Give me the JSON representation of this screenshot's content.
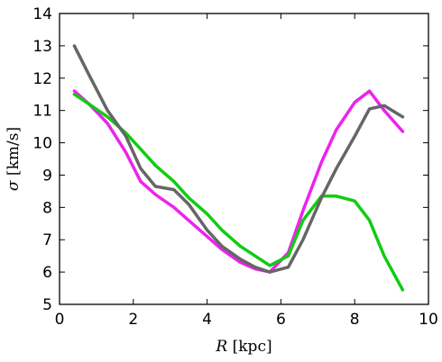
{
  "chart_data": {
    "type": "line",
    "title": "",
    "xlabel": "R [kpc]",
    "xlabel_var": "R",
    "xlabel_unit": " [kpc]",
    "ylabel": "σ [km/s]",
    "ylabel_var": "σ",
    "ylabel_unit": " [km/s]",
    "xlim": [
      0,
      10
    ],
    "ylim": [
      5,
      14
    ],
    "xticks": [
      0,
      2,
      4,
      6,
      8,
      10
    ],
    "yticks": [
      5,
      6,
      7,
      8,
      9,
      10,
      11,
      12,
      13,
      14
    ],
    "grid": false,
    "legend": "none",
    "series": [
      {
        "color": "#ee22ee",
        "x": [
          0.4,
          0.8,
          1.3,
          1.8,
          2.2,
          2.6,
          3.1,
          3.5,
          4.0,
          4.4,
          4.9,
          5.3,
          5.7,
          6.2,
          6.6,
          7.1,
          7.5,
          8.0,
          8.4,
          8.8,
          9.3
        ],
        "y": [
          11.6,
          11.2,
          10.6,
          9.7,
          8.8,
          8.4,
          8.0,
          7.6,
          7.1,
          6.7,
          6.3,
          6.1,
          6.0,
          6.6,
          7.9,
          9.4,
          10.4,
          11.25,
          11.6,
          11.0,
          10.35
        ]
      },
      {
        "color": "#11cc11",
        "x": [
          0.4,
          0.8,
          1.3,
          1.8,
          2.2,
          2.6,
          3.1,
          3.5,
          4.0,
          4.4,
          4.9,
          5.3,
          5.7,
          6.2,
          6.6,
          7.1,
          7.5,
          8.0,
          8.4,
          8.8,
          9.3
        ],
        "y": [
          11.5,
          11.2,
          10.8,
          10.3,
          9.8,
          9.3,
          8.8,
          8.3,
          7.8,
          7.3,
          6.8,
          6.5,
          6.2,
          6.5,
          7.6,
          8.35,
          8.35,
          8.2,
          7.6,
          6.5,
          5.45
        ]
      },
      {
        "color": "#666666",
        "x": [
          0.4,
          0.8,
          1.3,
          1.8,
          2.2,
          2.6,
          3.1,
          3.5,
          4.0,
          4.4,
          4.9,
          5.3,
          5.7,
          6.2,
          6.6,
          7.1,
          7.5,
          8.0,
          8.4,
          8.8,
          9.3
        ],
        "y": [
          13.0,
          12.1,
          11.0,
          10.2,
          9.2,
          8.65,
          8.55,
          8.1,
          7.3,
          6.8,
          6.4,
          6.15,
          6.0,
          6.15,
          7.0,
          8.3,
          9.2,
          10.2,
          11.05,
          11.15,
          10.8
        ]
      }
    ]
  }
}
